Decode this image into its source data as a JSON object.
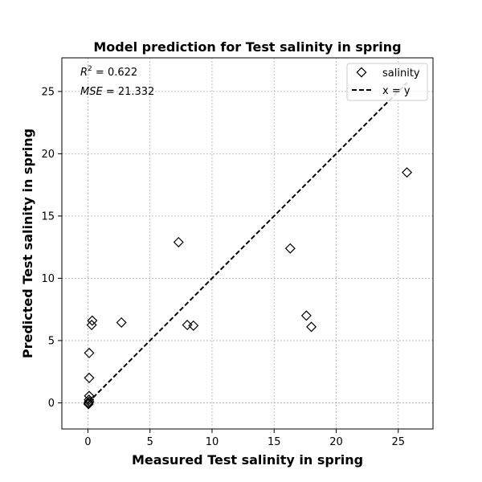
{
  "chart_data": {
    "type": "scatter",
    "title": "Model prediction for Test salinity in spring",
    "xlabel": "Measured Test salinity in spring",
    "ylabel": "Predicted Test salinity in spring",
    "xlim": [
      -2.1,
      27.8
    ],
    "ylim": [
      -2.1,
      27.7
    ],
    "xticks": [
      0,
      5,
      10,
      15,
      20,
      25
    ],
    "yticks": [
      0,
      5,
      10,
      15,
      20,
      25
    ],
    "grid": true,
    "legend_position": "top-right",
    "annotations": {
      "r2_prefix": "R",
      "r2_sup": "2",
      "r2_value": " = 0.622",
      "mse_prefix": "MSE",
      "mse_value": " = 21.332"
    },
    "series": [
      {
        "name": "salinity",
        "marker": "diamond",
        "color": "#000000",
        "points": [
          {
            "x": 0.05,
            "y": -0.1
          },
          {
            "x": 0.05,
            "y": 0.0
          },
          {
            "x": 0.1,
            "y": 0.1
          },
          {
            "x": 0.08,
            "y": 0.25
          },
          {
            "x": 0.1,
            "y": 0.55
          },
          {
            "x": 0.1,
            "y": 2.0
          },
          {
            "x": 0.1,
            "y": 4.0
          },
          {
            "x": 0.3,
            "y": 6.25
          },
          {
            "x": 0.35,
            "y": 6.6
          },
          {
            "x": 2.7,
            "y": 6.45
          },
          {
            "x": 7.3,
            "y": 12.9
          },
          {
            "x": 8.0,
            "y": 6.25
          },
          {
            "x": 8.5,
            "y": 6.2
          },
          {
            "x": 16.3,
            "y": 12.4
          },
          {
            "x": 17.6,
            "y": 7.0
          },
          {
            "x": 18.0,
            "y": 6.1
          },
          {
            "x": 25.7,
            "y": 18.5
          }
        ]
      },
      {
        "name": "x = y",
        "line_style": "dashed",
        "color": "#000000",
        "x": [
          0,
          25.7
        ],
        "y": [
          0,
          25.7
        ]
      }
    ]
  }
}
